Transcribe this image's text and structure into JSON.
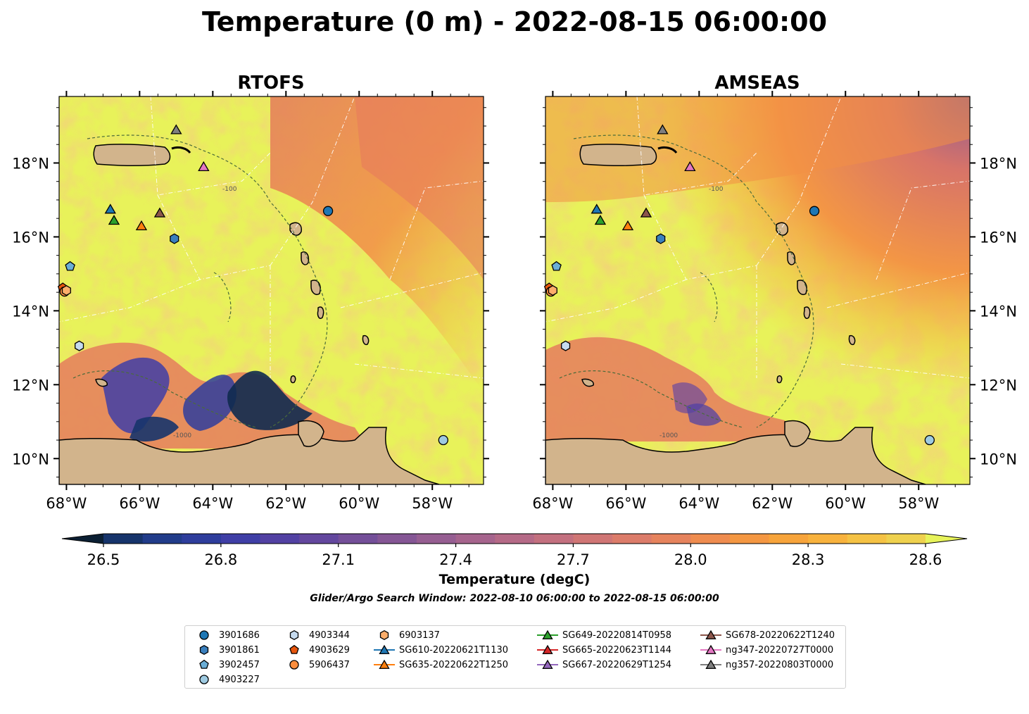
{
  "figure": {
    "title": "Temperature (0 m) - 2022-08-15 06:00:00",
    "subtitle": "Glider/Argo Search Window: 2022-08-10 06:00:00 to 2022-08-15 06:00:00"
  },
  "chart_data": {
    "type": "heatmap",
    "panels": [
      {
        "title": "RTOFS"
      },
      {
        "title": "AMSEAS"
      }
    ],
    "lon_range": [
      -68.2,
      -56.6
    ],
    "lat_range": [
      9.3,
      19.8
    ],
    "lon_ticks": [
      -68,
      -66,
      -64,
      -62,
      -60,
      -58
    ],
    "lon_tick_labels": [
      "68°W",
      "66°W",
      "64°W",
      "62°W",
      "60°W",
      "58°W"
    ],
    "lat_ticks": [
      10,
      12,
      14,
      16,
      18
    ],
    "lat_tick_labels": [
      "10°N",
      "12°N",
      "14°N",
      "16°N",
      "18°N"
    ],
    "contour_labels": [
      "-1000",
      "-100"
    ],
    "colorbar": {
      "label": "Temperature (degC)",
      "ticks": [
        26.5,
        26.8,
        27.1,
        27.4,
        27.7,
        28.0,
        28.3,
        28.6
      ],
      "tick_labels": [
        "26.5",
        "26.8",
        "27.1",
        "27.4",
        "27.7",
        "28.0",
        "28.3",
        "28.6"
      ],
      "min": 26.5,
      "max": 28.6,
      "extend": "both",
      "colors": [
        "#0b1f33",
        "#0f2a4f",
        "#16346b",
        "#213c8a",
        "#2e3d9c",
        "#3f3ea6",
        "#5241a3",
        "#63479e",
        "#744f99",
        "#855695",
        "#965e92",
        "#a6648d",
        "#b56a87",
        "#c3707f",
        "#d07675",
        "#dc7c6a",
        "#e6835d",
        "#ef8c4f",
        "#f49742",
        "#f7a43b",
        "#f8b23d",
        "#f5c244",
        "#efd14e",
        "#e8e251",
        "#e7f35a"
      ]
    },
    "markers": [
      {
        "id": "3901686",
        "shape": "circle",
        "color": "#1f77b4",
        "lon": -60.85,
        "lat": 16.7
      },
      {
        "id": "3901861",
        "shape": "hexagon",
        "color": "#3a7fbd",
        "lon": -65.05,
        "lat": 15.95
      },
      {
        "id": "3902457",
        "shape": "pentagon",
        "color": "#6baed6",
        "lon": -67.9,
        "lat": 15.2
      },
      {
        "id": "4903227",
        "shape": "circle",
        "color": "#9ecae1",
        "lon": -57.7,
        "lat": 10.5
      },
      {
        "id": "4903344",
        "shape": "hexagon",
        "color": "#c6dbef",
        "lon": -67.65,
        "lat": 13.05
      },
      {
        "id": "4903629",
        "shape": "pentagon",
        "color": "#e6550d",
        "lon": -68.1,
        "lat": 14.62
      },
      {
        "id": "5906437",
        "shape": "circle",
        "color": "#fd8d3c",
        "lon": -68.05,
        "lat": 14.52
      },
      {
        "id": "6903137",
        "shape": "hexagon",
        "color": "#fdae6b",
        "lon": -68.0,
        "lat": 14.55
      },
      {
        "id": "SG610-20220621T1130",
        "shape": "triangle",
        "color": "#1f77b4",
        "lon": -66.8,
        "lat": 16.75
      },
      {
        "id": "SG635-20220622T1250",
        "shape": "triangle",
        "color": "#ff7f0e",
        "lon": -65.95,
        "lat": 16.3
      },
      {
        "id": "SG649-20220814T0958",
        "shape": "triangle",
        "color": "#2ca02c",
        "lon": -66.7,
        "lat": 16.45
      },
      {
        "id": "SG665-20220623T1144",
        "shape": "triangle",
        "color": "#d62728",
        "lon": null,
        "lat": null
      },
      {
        "id": "SG667-20220629T1254",
        "shape": "triangle",
        "color": "#9467bd",
        "lon": null,
        "lat": null
      },
      {
        "id": "SG678-20220622T1240",
        "shape": "triangle",
        "color": "#8c564b",
        "lon": -65.45,
        "lat": 16.65
      },
      {
        "id": "ng347-20220727T0000",
        "shape": "triangle",
        "color": "#e377c2",
        "lon": -64.25,
        "lat": 17.9
      },
      {
        "id": "ng357-20220803T0000",
        "shape": "triangle",
        "color": "#7f7f7f",
        "lon": -65.0,
        "lat": 18.9
      }
    ],
    "legend_columns": [
      [
        "3901686",
        "3901861",
        "3902457",
        "4903227"
      ],
      [
        "4903344",
        "4903629",
        "5906437"
      ],
      [
        "6903137",
        "SG610-20220621T1130",
        "SG635-20220622T1250"
      ],
      [
        "SG649-20220814T0958",
        "SG665-20220623T1144",
        "SG667-20220629T1254"
      ],
      [
        "SG678-20220622T1240",
        "ng347-20220727T0000",
        "ng357-20220803T0000"
      ]
    ]
  }
}
